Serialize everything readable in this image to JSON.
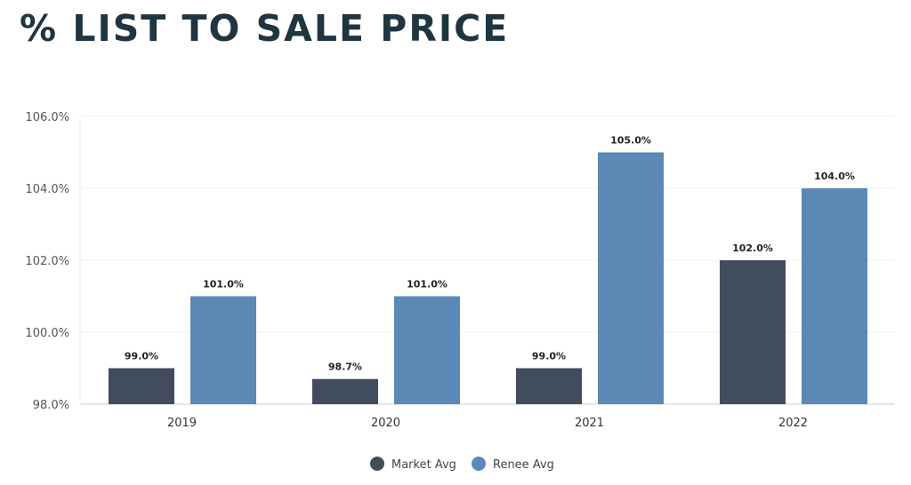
{
  "chart_data": {
    "type": "bar",
    "title": "% LIST TO SALE PRICE",
    "categories": [
      "2019",
      "2020",
      "2021",
      "2022"
    ],
    "series": [
      {
        "name": "Market Avg",
        "values": [
          99.0,
          98.7,
          99.0,
          102.0
        ],
        "color": "#414c5e"
      },
      {
        "name": "Renee Avg",
        "values": [
          101.0,
          101.0,
          105.0,
          104.0
        ],
        "color": "#5b89b5"
      }
    ],
    "ylim": [
      98,
      106
    ],
    "yticks": [
      98,
      100,
      102,
      104,
      106
    ],
    "tick_format": "%.1f%",
    "grid": true,
    "legend": "bottom-center",
    "xlabel": "",
    "ylabel": ""
  }
}
